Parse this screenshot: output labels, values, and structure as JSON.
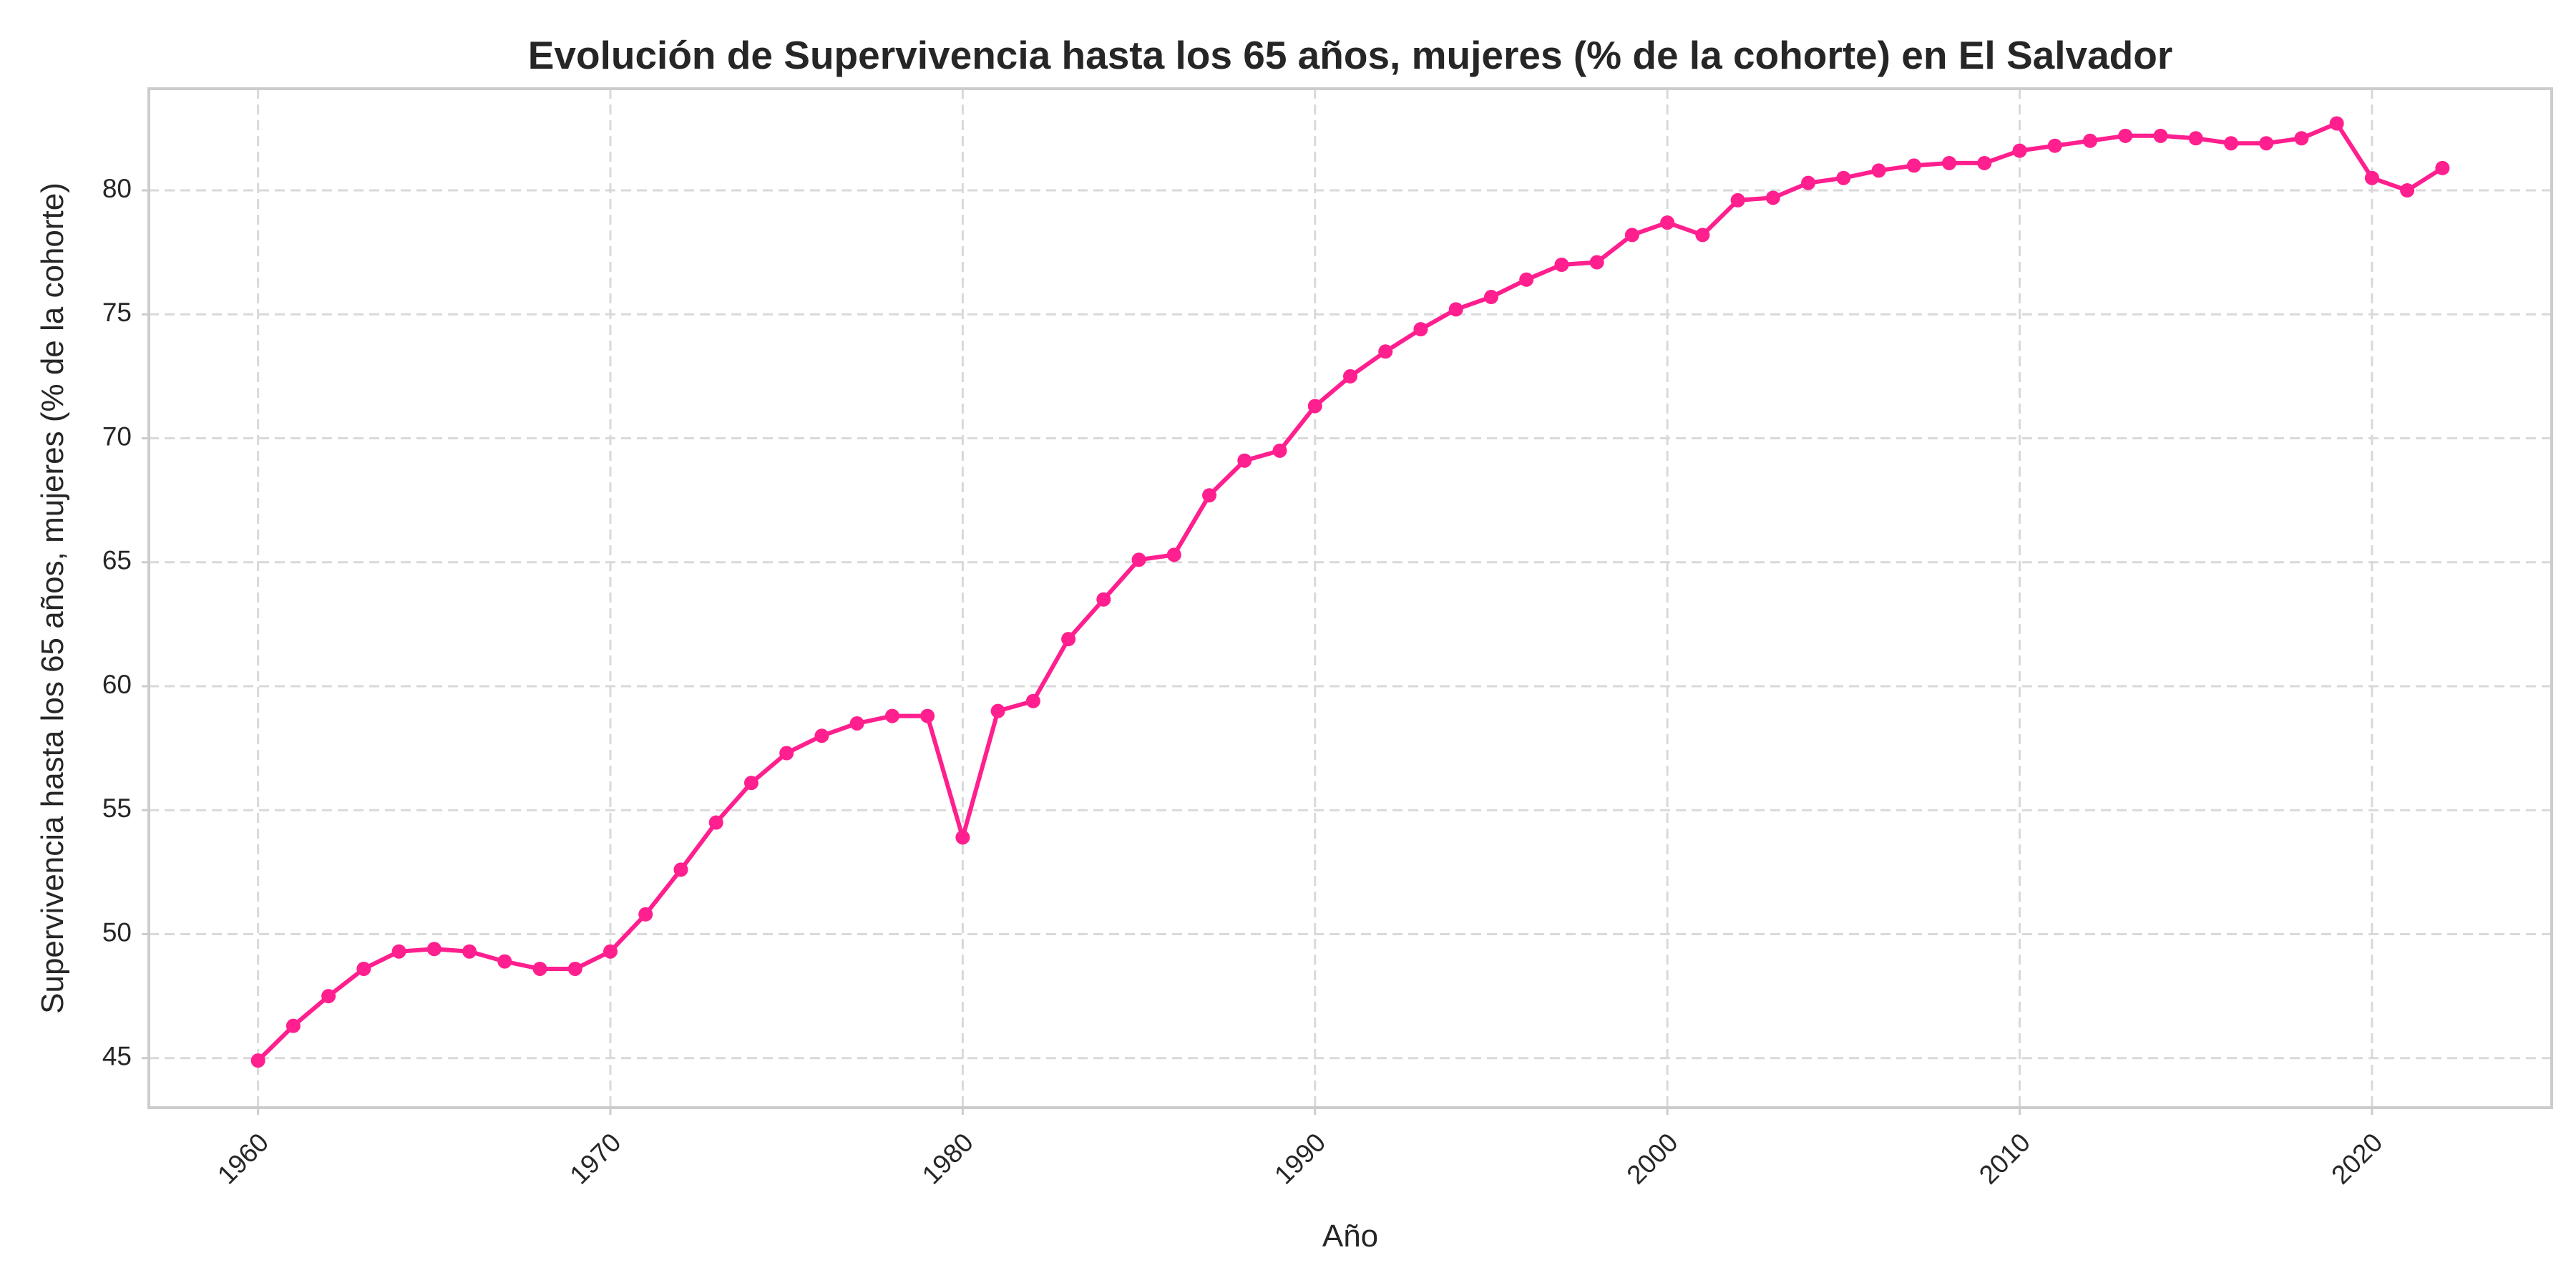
{
  "chart_data": {
    "type": "line",
    "title": "Evolución de Supervivencia hasta los 65 años, mujeres (% de la cohorte) en El Salvador",
    "xlabel": "Año",
    "ylabel": "Supervivencia hasta los 65 años, mujeres (% de la cohorte)",
    "xlim": [
      1956.9,
      2025.1
    ],
    "ylim": [
      43.0,
      84.1
    ],
    "x_ticks": [
      1960,
      1970,
      1980,
      1990,
      2000,
      2010,
      2020
    ],
    "y_ticks": [
      45,
      50,
      55,
      60,
      65,
      70,
      75,
      80
    ],
    "grid": true,
    "x_tick_rotation": "45 degrees",
    "colors": {
      "series": "#ff1f8e",
      "grid": "#d9d9d9",
      "frame": "#cccccc",
      "text": "#262626"
    },
    "series": [
      {
        "x": [
          1960,
          1961,
          1962,
          1963,
          1964,
          1965,
          1966,
          1967,
          1968,
          1969,
          1970,
          1971,
          1972,
          1973,
          1974,
          1975,
          1976,
          1977,
          1978,
          1979,
          1980,
          1981,
          1982,
          1983,
          1984,
          1985,
          1986,
          1987,
          1988,
          1989,
          1990,
          1991,
          1992,
          1993,
          1994,
          1995,
          1996,
          1997,
          1998,
          1999,
          2000,
          2001,
          2002,
          2003,
          2004,
          2005,
          2006,
          2007,
          2008,
          2009,
          2010,
          2011,
          2012,
          2013,
          2014,
          2015,
          2016,
          2017,
          2018,
          2019,
          2020,
          2021,
          2022
        ],
        "values": [
          44.9,
          46.3,
          47.5,
          48.6,
          49.3,
          49.4,
          49.3,
          48.9,
          48.6,
          48.6,
          49.3,
          50.8,
          52.6,
          54.5,
          56.1,
          57.3,
          58.0,
          58.5,
          58.8,
          58.8,
          53.9,
          59.0,
          59.4,
          61.9,
          63.5,
          65.1,
          65.3,
          67.7,
          69.1,
          69.5,
          71.3,
          72.5,
          73.5,
          74.4,
          75.2,
          75.7,
          76.4,
          77.0,
          77.1,
          78.2,
          78.7,
          78.2,
          79.6,
          79.7,
          80.3,
          80.5,
          80.8,
          81.0,
          81.1,
          81.1,
          81.6,
          81.8,
          82.0,
          82.2,
          82.2,
          82.1,
          81.9,
          81.9,
          82.1,
          82.7,
          80.5,
          80.0,
          80.9
        ]
      }
    ]
  }
}
